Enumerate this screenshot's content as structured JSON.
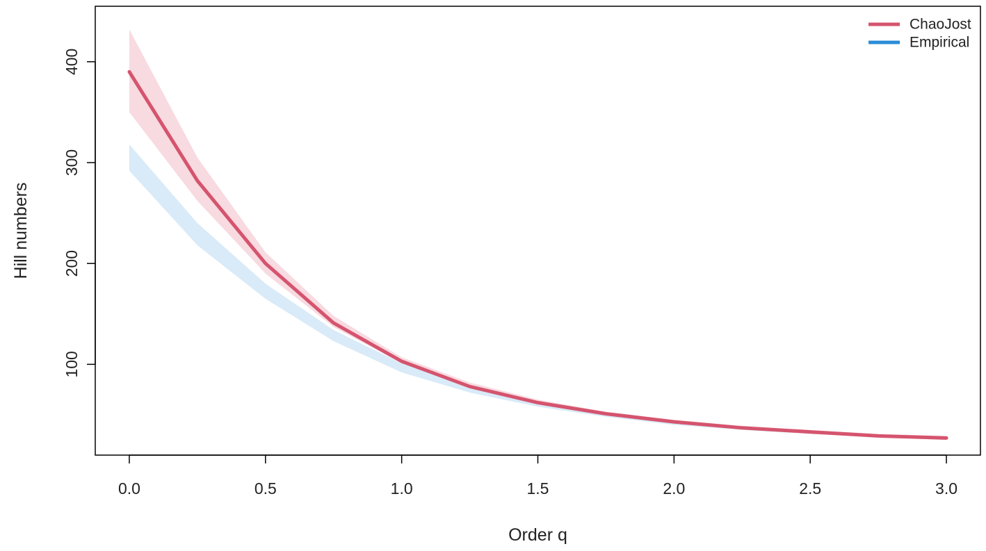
{
  "chart_data": {
    "type": "line",
    "title": "",
    "xlabel": "Order  q",
    "ylabel": "Hill  numbers",
    "xlim": [
      -0.125,
      3.125
    ],
    "ylim": [
      10,
      455
    ],
    "x_ticks": [
      0.0,
      0.5,
      1.0,
      1.5,
      2.0,
      2.5,
      3.0
    ],
    "x_tick_labels": [
      "0.0",
      "0.5",
      "1.0",
      "1.5",
      "2.0",
      "2.5",
      "3.0"
    ],
    "y_ticks": [
      100,
      200,
      300,
      400
    ],
    "y_tick_labels": [
      "100",
      "200",
      "300",
      "400"
    ],
    "grid": false,
    "legend_position": "top-right",
    "x": [
      0.0,
      0.25,
      0.5,
      0.75,
      1.0,
      1.25,
      1.5,
      1.75,
      2.0,
      2.25,
      2.5,
      2.75,
      3.0
    ],
    "series": [
      {
        "name": "ChaoJost",
        "color": "#D5546E",
        "band_color": "#F7D3DC",
        "values": [
          390,
          282,
          200,
          141,
          103,
          78,
          62,
          51,
          43,
          37,
          33,
          29,
          27
        ],
        "lower": [
          350,
          262,
          190,
          137,
          101,
          77,
          61,
          50,
          42,
          36,
          31,
          28,
          25
        ],
        "upper": [
          432,
          305,
          211,
          148,
          107,
          82,
          65,
          53,
          45,
          39,
          35,
          31,
          29
        ]
      },
      {
        "name": "Empirical",
        "color": "#2B8CD6",
        "band_color": "#D2E6F7",
        "values": [
          305,
          228,
          172,
          129,
          97,
          76,
          61,
          50,
          42,
          36,
          32,
          29,
          26
        ],
        "lower": [
          292,
          218,
          165,
          123,
          92,
          72,
          58,
          48,
          40,
          35,
          31,
          28,
          25
        ],
        "upper": [
          318,
          240,
          180,
          134,
          101,
          79,
          63,
          52,
          44,
          38,
          34,
          30,
          27
        ]
      }
    ]
  }
}
